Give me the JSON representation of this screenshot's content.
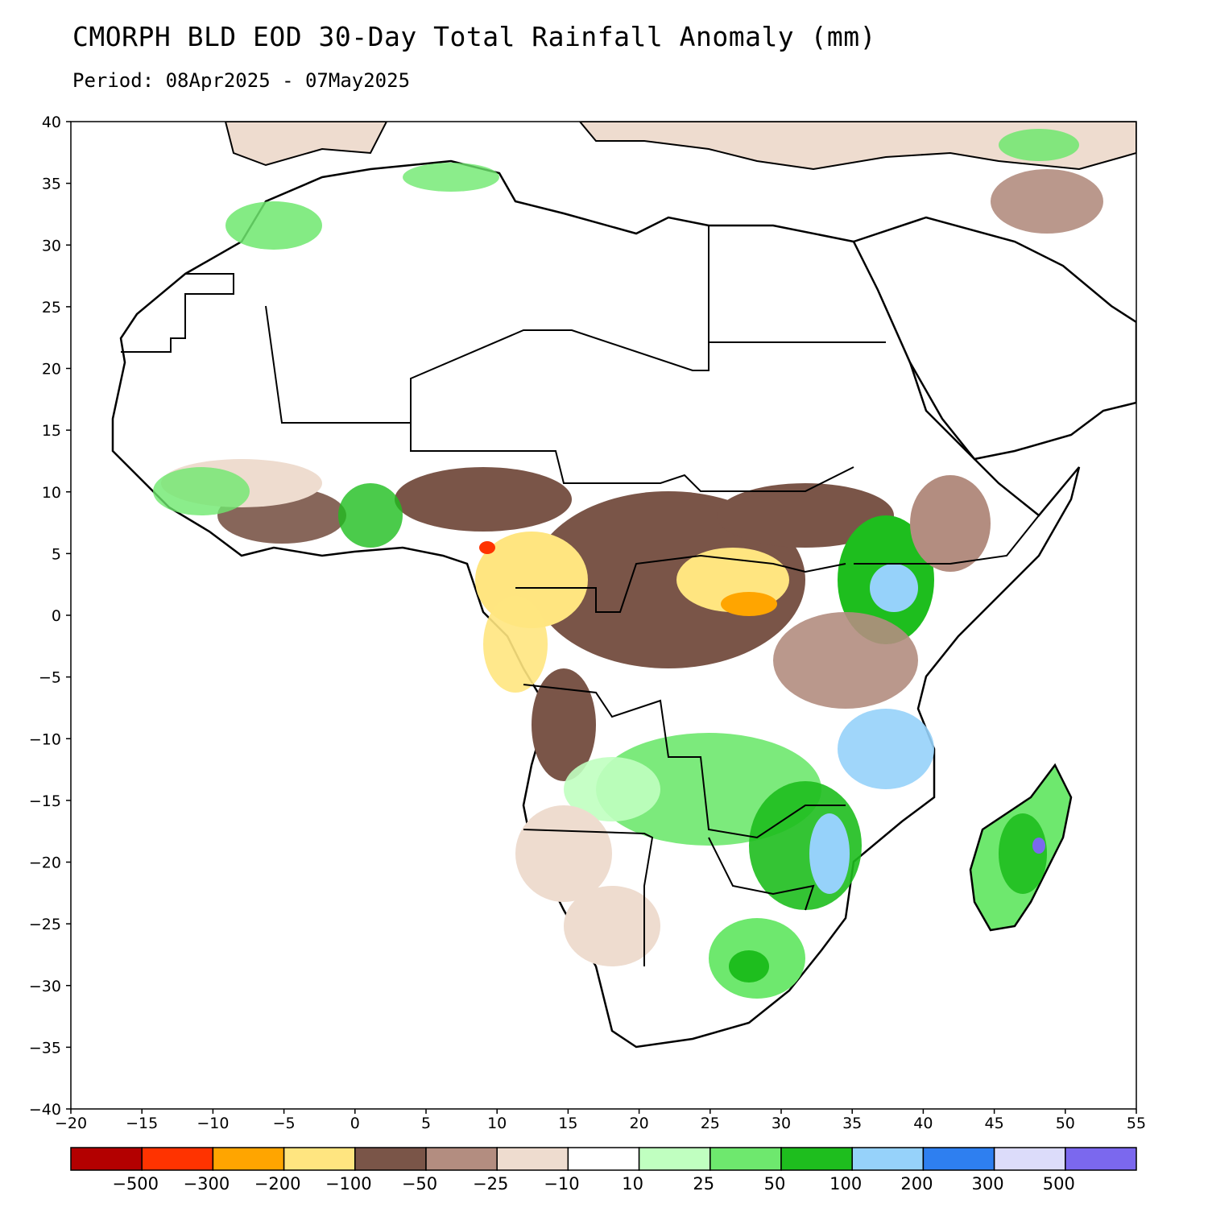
{
  "title": "CMORPH BLD EOD 30-Day Total Rainfall Anomaly (mm)",
  "subtitle": "Period: 08Apr2025 - 07May2025",
  "map": {
    "region": "Africa and Middle East",
    "lon_range": [
      -20,
      55
    ],
    "lat_range": [
      -40,
      40
    ],
    "lon_ticks": [
      "−20",
      "−15",
      "−10",
      "−5",
      "0",
      "5",
      "10",
      "15",
      "20",
      "25",
      "30",
      "35",
      "40",
      "45",
      "50",
      "55"
    ],
    "lat_ticks": [
      "40",
      "35",
      "30",
      "25",
      "20",
      "15",
      "10",
      "5",
      "0",
      "−5",
      "−10",
      "−15",
      "−20",
      "−25",
      "−30",
      "−35",
      "−40"
    ]
  },
  "colorbar": {
    "colors": [
      "#b30000",
      "#ff3300",
      "#ffa500",
      "#ffe580",
      "#7a5548",
      "#b38d80",
      "#eedccf",
      "#ffffff",
      "#c0ffc0",
      "#6ee86e",
      "#1ebe1e",
      "#96d2fa",
      "#2e7ff0",
      "#dcdcfa",
      "#7b68ee"
    ],
    "labels": [
      "−500",
      "−300",
      "−200",
      "−100",
      "−50",
      "−25",
      "−10",
      "10",
      "25",
      "50",
      "100",
      "200",
      "300",
      "500"
    ]
  }
}
